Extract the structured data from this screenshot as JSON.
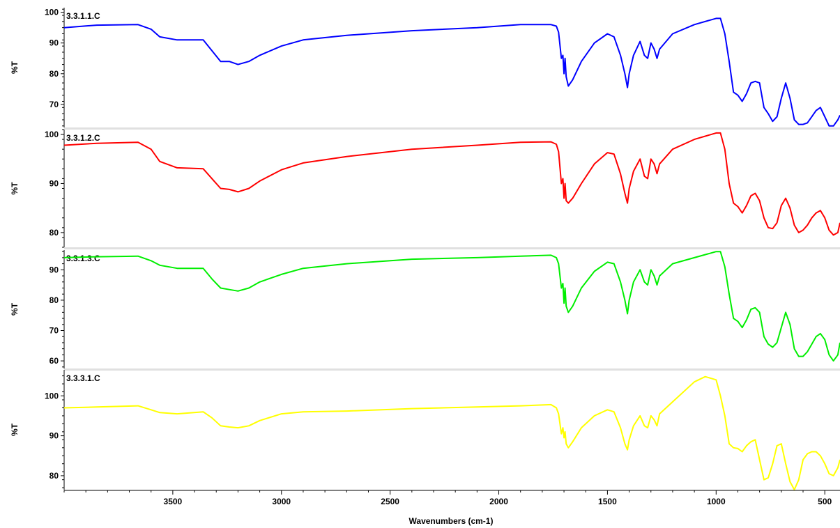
{
  "chart_data": {
    "type": "line",
    "xlabel": "Wavenumbers (cm-1)",
    "x_reversed": true,
    "xlim": [
      4000,
      430
    ],
    "x_ticks": [
      3500,
      3000,
      2500,
      2000,
      1500,
      1000,
      500
    ],
    "panels": [
      {
        "title": "3.3.1.1.C",
        "ylabel": "%T",
        "color": "#0000ff",
        "ylim": [
          62.5,
          101.5
        ],
        "y_ticks": [
          100,
          90,
          80,
          70
        ],
        "x": [
          4000,
          3850,
          3660,
          3600,
          3560,
          3480,
          3360,
          3320,
          3280,
          3240,
          3200,
          3150,
          3100,
          3000,
          2900,
          2700,
          2400,
          2100,
          1900,
          1760,
          1735,
          1725,
          1712,
          1705,
          1700,
          1695,
          1690,
          1680,
          1660,
          1620,
          1560,
          1500,
          1470,
          1440,
          1420,
          1408,
          1400,
          1380,
          1350,
          1330,
          1315,
          1300,
          1285,
          1272,
          1260,
          1200,
          1100,
          1000,
          980,
          960,
          940,
          920,
          900,
          880,
          860,
          840,
          820,
          800,
          780,
          760,
          740,
          720,
          700,
          680,
          660,
          640,
          620,
          600,
          580,
          560,
          540,
          520,
          500,
          480,
          460,
          440,
          430
        ],
        "y": [
          95.0,
          95.8,
          96.0,
          94.5,
          92.0,
          91.0,
          91.0,
          87.5,
          84.0,
          84.0,
          83.0,
          84.0,
          86.0,
          89.0,
          91.0,
          92.5,
          94.0,
          95.0,
          96.0,
          96.0,
          95.5,
          93.5,
          85.0,
          86.0,
          80.0,
          85.0,
          79.0,
          76.0,
          78.0,
          84.0,
          90.0,
          93.0,
          92.0,
          86.0,
          80.0,
          75.5,
          80.0,
          86.0,
          90.5,
          86.0,
          85.0,
          90.0,
          88.0,
          85.0,
          88.0,
          93.0,
          96.0,
          98.0,
          98.0,
          93.0,
          84.0,
          74.0,
          73.0,
          71.0,
          73.5,
          77.0,
          77.5,
          77.0,
          69.0,
          67.0,
          64.5,
          66.0,
          72.0,
          77.0,
          72.0,
          65.0,
          63.5,
          63.5,
          64.0,
          66.0,
          68.0,
          69.0,
          66.0,
          63.0,
          63.0,
          65.0,
          66.5
        ]
      },
      {
        "title": "3.3.1.2.C",
        "ylabel": "%T",
        "color": "#ff0000",
        "ylim": [
          77.0,
          101.0
        ],
        "y_ticks": [
          100,
          90,
          80
        ],
        "x": [
          4000,
          3850,
          3660,
          3600,
          3560,
          3480,
          3360,
          3320,
          3280,
          3240,
          3200,
          3150,
          3100,
          3000,
          2900,
          2700,
          2400,
          2100,
          1900,
          1760,
          1735,
          1725,
          1712,
          1705,
          1700,
          1695,
          1690,
          1680,
          1660,
          1620,
          1560,
          1500,
          1470,
          1440,
          1420,
          1408,
          1400,
          1380,
          1350,
          1330,
          1315,
          1300,
          1285,
          1272,
          1260,
          1200,
          1100,
          1000,
          980,
          960,
          940,
          920,
          900,
          880,
          860,
          840,
          820,
          800,
          780,
          760,
          740,
          720,
          700,
          680,
          660,
          640,
          620,
          600,
          580,
          560,
          540,
          520,
          500,
          480,
          460,
          440,
          430
        ],
        "y": [
          97.8,
          98.2,
          98.4,
          97.0,
          94.5,
          93.2,
          93.0,
          91.0,
          89.0,
          88.8,
          88.3,
          89.0,
          90.5,
          92.8,
          94.2,
          95.5,
          97.0,
          97.8,
          98.4,
          98.5,
          98.0,
          96.5,
          90.0,
          91.0,
          87.0,
          90.0,
          86.5,
          86.0,
          87.0,
          90.0,
          94.0,
          96.3,
          96.0,
          92.0,
          88.0,
          86.0,
          89.0,
          92.5,
          95.0,
          91.5,
          91.0,
          95.0,
          94.0,
          92.0,
          94.0,
          97.0,
          99.0,
          100.3,
          100.3,
          97.0,
          90.0,
          86.0,
          85.3,
          84.0,
          85.5,
          87.5,
          88.0,
          86.5,
          83.0,
          81.0,
          80.8,
          82.0,
          85.5,
          87.0,
          85.0,
          81.5,
          80.0,
          80.5,
          81.5,
          83.0,
          84.0,
          84.5,
          83.0,
          80.5,
          79.5,
          80.0,
          82.0
        ]
      },
      {
        "title": "3.3.1.3.C",
        "ylabel": "%T",
        "color": "#00ee00",
        "ylim": [
          57.5,
          96.5
        ],
        "y_ticks": [
          90,
          80,
          70,
          60
        ],
        "x": [
          4000,
          3850,
          3660,
          3600,
          3560,
          3480,
          3360,
          3320,
          3280,
          3240,
          3200,
          3150,
          3100,
          3000,
          2900,
          2700,
          2400,
          2100,
          1900,
          1760,
          1735,
          1725,
          1712,
          1705,
          1700,
          1695,
          1690,
          1680,
          1660,
          1620,
          1560,
          1500,
          1470,
          1440,
          1420,
          1408,
          1400,
          1380,
          1350,
          1330,
          1315,
          1300,
          1285,
          1272,
          1260,
          1200,
          1100,
          1000,
          980,
          960,
          940,
          920,
          900,
          880,
          860,
          840,
          820,
          800,
          780,
          760,
          740,
          720,
          700,
          680,
          660,
          640,
          620,
          600,
          580,
          560,
          540,
          520,
          500,
          480,
          460,
          440,
          430
        ],
        "y": [
          94.0,
          94.3,
          94.5,
          93.0,
          91.5,
          90.5,
          90.5,
          87.0,
          84.0,
          83.5,
          83.0,
          84.0,
          86.0,
          88.5,
          90.5,
          92.0,
          93.5,
          94.0,
          94.5,
          94.8,
          94.0,
          92.0,
          84.0,
          85.5,
          79.0,
          84.0,
          78.0,
          76.0,
          78.0,
          84.0,
          89.5,
          92.5,
          92.0,
          86.0,
          80.0,
          75.5,
          80.0,
          86.0,
          90.0,
          86.0,
          85.0,
          90.0,
          88.0,
          85.0,
          88.0,
          92.0,
          94.0,
          96.0,
          96.0,
          91.0,
          82.0,
          74.0,
          73.0,
          71.0,
          73.5,
          77.0,
          77.5,
          76.0,
          68.0,
          65.5,
          64.5,
          66.0,
          71.0,
          76.0,
          72.0,
          64.0,
          61.5,
          61.5,
          63.0,
          65.5,
          68.0,
          69.0,
          67.0,
          62.0,
          60.0,
          62.0,
          66.0
        ]
      },
      {
        "title": "3.3.3.1.C",
        "ylabel": "%T",
        "color": "#ffff00",
        "ylim": [
          76.5,
          106.5
        ],
        "y_ticks": [
          100,
          90,
          80
        ],
        "x": [
          4000,
          3850,
          3660,
          3600,
          3560,
          3480,
          3360,
          3320,
          3280,
          3240,
          3200,
          3150,
          3100,
          3000,
          2900,
          2700,
          2400,
          2100,
          1900,
          1760,
          1735,
          1725,
          1712,
          1705,
          1700,
          1695,
          1690,
          1680,
          1660,
          1620,
          1560,
          1500,
          1470,
          1440,
          1420,
          1408,
          1400,
          1380,
          1350,
          1330,
          1315,
          1300,
          1285,
          1272,
          1260,
          1200,
          1100,
          1050,
          1000,
          980,
          960,
          940,
          920,
          900,
          880,
          860,
          840,
          820,
          800,
          780,
          760,
          740,
          720,
          700,
          680,
          660,
          640,
          620,
          600,
          580,
          560,
          540,
          520,
          500,
          480,
          460,
          440,
          430
        ],
        "y": [
          97.0,
          97.2,
          97.5,
          96.5,
          95.8,
          95.5,
          96.0,
          94.5,
          92.5,
          92.2,
          92.0,
          92.5,
          93.8,
          95.5,
          96.0,
          96.2,
          96.8,
          97.2,
          97.5,
          97.8,
          97.0,
          95.5,
          90.5,
          92.0,
          89.5,
          91.0,
          88.0,
          87.0,
          88.5,
          92.0,
          95.0,
          96.5,
          96.0,
          92.0,
          88.0,
          86.5,
          89.0,
          92.5,
          95.0,
          92.5,
          92.0,
          95.0,
          94.0,
          92.5,
          95.5,
          98.5,
          103.5,
          104.8,
          104.0,
          100.0,
          95.0,
          88.0,
          87.0,
          86.8,
          86.0,
          87.5,
          88.5,
          89.0,
          84.0,
          79.0,
          79.5,
          83.0,
          87.5,
          88.0,
          83.0,
          78.5,
          76.5,
          79.0,
          84.0,
          85.5,
          86.0,
          86.0,
          85.0,
          83.0,
          80.5,
          80.0,
          82.0,
          84.0
        ]
      }
    ]
  }
}
